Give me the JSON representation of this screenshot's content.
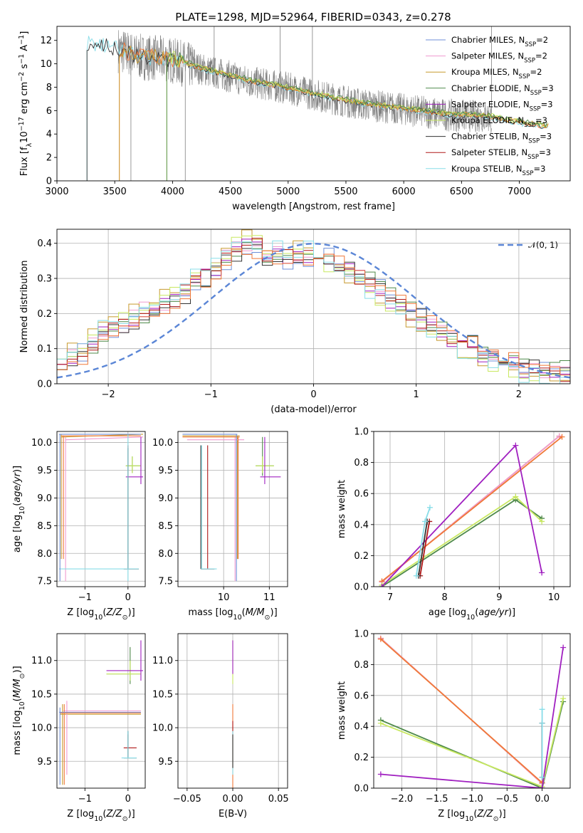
{
  "figure": {
    "title": "PLATE=1298, MJD=52964, FIBERID=0343, z=0.278"
  },
  "palette": {
    "Chabrier MILES": "#6f8fd8",
    "Salpeter MILES": "#f09ad0",
    "Kroupa MILES": "#c79a2e",
    "Chabrier ELODIE": "#4f8a4a",
    "Salpeter ELODIE": "#a020c0",
    "Kroupa ELODIE": "#c8e860",
    "Chabrier STELIB": "#333333",
    "Salpeter STELIB": "#b01818",
    "Kroupa STELIB": "#88dde8",
    "data": "#808080",
    "orange": "#f07838",
    "normal": "#5b86d6"
  },
  "chart_data": [
    {
      "id": "spectrum",
      "type": "line",
      "xlabel": "wavelength [Angstrom, rest frame]",
      "ylabel": "Flux [f_λ10^-17 erg cm^-2 s^-1 A^-1]",
      "xlim": [
        3000,
        7440
      ],
      "ylim": [
        0,
        13.2
      ],
      "xticks": [
        3000,
        3500,
        4000,
        4500,
        5000,
        5500,
        6000,
        6500,
        7000
      ],
      "yticks": [
        0,
        2,
        4,
        6,
        8,
        10,
        12
      ],
      "legend_position": "top-right",
      "legend": [
        {
          "label": "Chabrier MILES, N",
          "sub": "SSP",
          "suffix": "=2",
          "color": "#6f8fd8"
        },
        {
          "label": "Salpeter MILES, N",
          "sub": "SSP",
          "suffix": "=2",
          "color": "#f09ad0"
        },
        {
          "label": "Kroupa MILES, N",
          "sub": "SSP",
          "suffix": "=2",
          "color": "#c79a2e"
        },
        {
          "label": "Chabrier ELODIE, N",
          "sub": "SSP",
          "suffix": "=3",
          "color": "#4f8a4a"
        },
        {
          "label": "Salpeter ELODIE, N",
          "sub": "SSP",
          "suffix": "=3",
          "color": "#a020c0"
        },
        {
          "label": "Kroupa ELODIE, N",
          "sub": "SSP",
          "suffix": "=3",
          "color": "#c8e860"
        },
        {
          "label": "Chabrier STELIB, N",
          "sub": "SSP",
          "suffix": "=3",
          "color": "#333333"
        },
        {
          "label": "Salpeter STELIB, N",
          "sub": "SSP",
          "suffix": "=3",
          "color": "#b01818"
        },
        {
          "label": "Kroupa STELIB, N",
          "sub": "SSP",
          "suffix": "=3",
          "color": "#88dde8"
        }
      ],
      "model_start": {
        "ELODIE": 3950,
        "MILES": 3540,
        "STELIB": 3260
      },
      "model_end": 7250,
      "continuum": [
        [
          3260,
          11.8
        ],
        [
          3500,
          11.3
        ],
        [
          3700,
          10.6
        ],
        [
          3950,
          10.4
        ],
        [
          4100,
          10.0
        ],
        [
          4300,
          9.4
        ],
        [
          4500,
          8.9
        ],
        [
          4700,
          8.4
        ],
        [
          5000,
          7.9
        ],
        [
          5300,
          7.2
        ],
        [
          5600,
          6.6
        ],
        [
          6000,
          6.1
        ],
        [
          6400,
          5.6
        ],
        [
          6700,
          5.5
        ],
        [
          7000,
          4.9
        ],
        [
          7250,
          4.6
        ]
      ],
      "data_range": [
        3530,
        6760
      ],
      "spikes": [
        [
          4360,
          13.2
        ],
        [
          4930,
          13.2
        ],
        [
          5210,
          13.2
        ],
        [
          6760,
          13.2
        ],
        [
          3640,
          0
        ],
        [
          4110,
          0
        ]
      ]
    },
    {
      "id": "residuals",
      "type": "line",
      "xlabel": "(data-model)/error",
      "ylabel": "Normed distribution",
      "xlim": [
        -2.5,
        2.5
      ],
      "ylim": [
        0,
        0.44
      ],
      "xticks": [
        -2,
        -1,
        0,
        1,
        2
      ],
      "yticks": [
        0.0,
        0.1,
        0.2,
        0.3,
        0.4
      ],
      "legend_position": "top-right",
      "normal_label": "𝒩(0, 1)",
      "bin_width": 0.1,
      "bin_start": -2.5,
      "histogram_mean": [
        0.08,
        0.08,
        0.09,
        0.12,
        0.15,
        0.16,
        0.17,
        0.19,
        0.21,
        0.21,
        0.23,
        0.24,
        0.26,
        0.29,
        0.31,
        0.33,
        0.36,
        0.38,
        0.4,
        0.39,
        0.37,
        0.37,
        0.36,
        0.37,
        0.37,
        0.36,
        0.35,
        0.33,
        0.32,
        0.3,
        0.28,
        0.26,
        0.24,
        0.22,
        0.2,
        0.18,
        0.16,
        0.15,
        0.13,
        0.11,
        0.1,
        0.08,
        0.07,
        0.06,
        0.05,
        0.04,
        0.04,
        0.03,
        0.03,
        0.03
      ]
    },
    {
      "id": "age-vs-Z",
      "type": "scatter",
      "xlabel": "Z [log10(Z/Z⊙)]",
      "ylabel": "age [log10(age/yr)]",
      "xlim": [
        -1.65,
        0.4
      ],
      "ylim": [
        7.4,
        10.2
      ],
      "xticks": [
        -1,
        0
      ],
      "yticks": [
        7.5,
        8.0,
        8.5,
        9.0,
        9.5,
        10.0
      ]
    },
    {
      "id": "age-vs-mass",
      "type": "scatter",
      "xlabel": "mass [log10(M/M⊙)]",
      "xlim": [
        9.0,
        11.4
      ],
      "ylim": [
        7.4,
        10.2
      ],
      "xticks": [
        10,
        11
      ],
      "yticks": [
        7.5,
        8.0,
        8.5,
        9.0,
        9.5,
        10.0
      ]
    },
    {
      "id": "weight-vs-age",
      "type": "line",
      "xlabel": "age [log10(age/yr)]",
      "ylabel": "mass weight",
      "xlim": [
        6.7,
        10.3
      ],
      "ylim": [
        0,
        1.0
      ],
      "xticks": [
        7,
        8,
        9,
        10
      ],
      "yticks": [
        0.0,
        0.2,
        0.4,
        0.6,
        0.8,
        1.0
      ],
      "series": [
        {
          "color": "#c79a2e",
          "x": [
            6.85,
            10.1
          ],
          "y": [
            0.03,
            0.97
          ]
        },
        {
          "color": "#f09ad0",
          "x": [
            6.85,
            10.1
          ],
          "y": [
            0.03,
            0.97
          ]
        },
        {
          "color": "#f07838",
          "x": [
            6.85,
            10.15
          ],
          "y": [
            0.035,
            0.965
          ]
        },
        {
          "color": "#4f8a4a",
          "x": [
            6.85,
            9.3,
            9.78
          ],
          "y": [
            0.0,
            0.56,
            0.44
          ]
        },
        {
          "color": "#c8e860",
          "x": [
            6.85,
            9.3,
            9.78
          ],
          "y": [
            0.01,
            0.58,
            0.42
          ]
        },
        {
          "color": "#a020c0",
          "x": [
            6.85,
            9.3,
            9.78
          ],
          "y": [
            0.0,
            0.91,
            0.09
          ]
        },
        {
          "color": "#b01818",
          "x": [
            7.55,
            7.72
          ],
          "y": [
            0.07,
            0.42
          ]
        },
        {
          "color": "#333333",
          "x": [
            7.52,
            7.68
          ],
          "y": [
            0.07,
            0.42
          ]
        },
        {
          "color": "#88dde8",
          "x": [
            7.48,
            7.64,
            7.73
          ],
          "y": [
            0.07,
            0.42,
            0.51
          ]
        }
      ]
    },
    {
      "id": "mass-vs-Z",
      "type": "scatter",
      "xlabel": "Z [log10(Z/Z⊙)]",
      "ylabel": "mass [log10(M/M⊙)]",
      "xlim": [
        -1.65,
        0.4
      ],
      "ylim": [
        9.1,
        11.4
      ],
      "xticks": [
        -1,
        0
      ],
      "yticks": [
        9.5,
        10.0,
        10.5,
        11.0
      ]
    },
    {
      "id": "mass-vs-EBV",
      "type": "scatter",
      "xlabel": "E(B-V)",
      "xlim": [
        -0.06,
        0.06
      ],
      "ylim": [
        9.1,
        11.4
      ],
      "xticks": [
        -0.05,
        0.0,
        0.05
      ],
      "yticks": [
        9.5,
        10.0,
        10.5,
        11.0
      ]
    },
    {
      "id": "weight-vs-Z",
      "type": "line",
      "xlabel": "Z [log10(Z/Z⊙)]",
      "ylabel": "mass weight",
      "xlim": [
        -2.4,
        0.4
      ],
      "ylim": [
        0,
        1.0
      ],
      "xticks": [
        -2.0,
        -1.5,
        -1.0,
        -0.5,
        0.0
      ],
      "yticks": [
        0.0,
        0.2,
        0.4,
        0.6,
        0.8,
        1.0
      ],
      "series": [
        {
          "color": "#c79a2e",
          "x": [
            -2.3,
            0.0
          ],
          "y": [
            0.97,
            0.03
          ]
        },
        {
          "color": "#f09ad0",
          "x": [
            -2.3,
            0.0
          ],
          "y": [
            0.97,
            0.03
          ]
        },
        {
          "color": "#f07838",
          "x": [
            -2.3,
            0.0
          ],
          "y": [
            0.965,
            0.035
          ]
        },
        {
          "color": "#4f8a4a",
          "x": [
            -2.3,
            0.0,
            0.3
          ],
          "y": [
            0.44,
            0.0,
            0.56
          ]
        },
        {
          "color": "#c8e860",
          "x": [
            -2.3,
            0.0,
            0.3
          ],
          "y": [
            0.42,
            0.01,
            0.58
          ]
        },
        {
          "color": "#a020c0",
          "x": [
            -2.3,
            0.0,
            0.3
          ],
          "y": [
            0.09,
            0.0,
            0.91
          ]
        },
        {
          "color": "#b01818",
          "x": [
            0.0,
            0.0
          ],
          "y": [
            0.07,
            0.42
          ]
        },
        {
          "color": "#333333",
          "x": [
            0.0,
            0.0
          ],
          "y": [
            0.07,
            0.42
          ]
        },
        {
          "color": "#88dde8",
          "x": [
            0.0,
            0.0,
            0.0
          ],
          "y": [
            0.07,
            0.42,
            0.51
          ]
        }
      ]
    }
  ],
  "error_bars": {
    "age-vs-Z": [
      {
        "color": "#c79a2e",
        "x": [
          -1.55,
          0.35
        ],
        "y": [
          10.1,
          10.15
        ],
        "xc": -1.55,
        "yr": [
          7.9,
          10.15
        ]
      },
      {
        "color": "#f09ad0",
        "x": [
          -1.45,
          0.35
        ],
        "y": [
          10.05,
          10.1
        ],
        "xc": -1.45,
        "yr": [
          7.5,
          10.1
        ]
      },
      {
        "color": "#f07838",
        "x": [
          -1.55,
          0.3
        ],
        "y": [
          10.12,
          10.12
        ],
        "xc": -1.5,
        "yr": [
          7.9,
          10.12
        ]
      },
      {
        "color": "#4f8a4a",
        "x": [
          -0.05,
          0.3
        ],
        "y": [
          9.58,
          9.58
        ],
        "xc": 0.1,
        "yr": [
          9.45,
          9.75
        ]
      },
      {
        "color": "#c8e860",
        "x": [
          -0.05,
          0.3
        ],
        "y": [
          9.58,
          9.58
        ],
        "xc": 0.1,
        "yr": [
          9.45,
          9.75
        ]
      },
      {
        "color": "#a020c0",
        "x": [
          -0.05,
          0.35
        ],
        "y": [
          9.38,
          9.38
        ],
        "xc": 0.3,
        "yr": [
          9.25,
          10.1
        ]
      },
      {
        "color": "#b01818",
        "x": [
          -0.1,
          0.25
        ],
        "y": [
          7.72,
          7.72
        ],
        "xc": 0.0,
        "yr": [
          7.72,
          9.95
        ]
      },
      {
        "color": "#333333",
        "x": [
          -0.1,
          0.25
        ],
        "y": [
          7.72,
          7.72
        ],
        "xc": 0.0,
        "yr": [
          7.72,
          9.9
        ]
      },
      {
        "color": "#88dde8",
        "x": [
          -1.6,
          0.25
        ],
        "y": [
          7.72,
          7.72
        ],
        "xc": 0.0,
        "yr": [
          7.5,
          10.15
        ]
      },
      {
        "color": "#6f8fd8",
        "x": [
          -1.6,
          0.3
        ],
        "y": [
          10.15,
          10.15
        ],
        "xc": -1.58,
        "yr": [
          7.5,
          10.15
        ]
      }
    ],
    "age-vs-mass": [
      {
        "color": "#c79a2e",
        "x": [
          9.1,
          10.35
        ],
        "y": [
          10.12,
          10.12
        ],
        "xc": 10.3,
        "yr": [
          7.9,
          10.12
        ]
      },
      {
        "color": "#f09ad0",
        "x": [
          9.2,
          10.45
        ],
        "y": [
          10.05,
          10.05
        ],
        "xc": 10.25,
        "yr": [
          7.5,
          10.1
        ]
      },
      {
        "color": "#f07838",
        "x": [
          9.1,
          10.35
        ],
        "y": [
          10.1,
          10.1
        ],
        "xc": 10.32,
        "yr": [
          7.9,
          10.1
        ]
      },
      {
        "color": "#4f8a4a",
        "x": [
          10.7,
          11.1
        ],
        "y": [
          9.58,
          9.58
        ],
        "xc": 10.85,
        "yr": [
          9.4,
          10.1
        ]
      },
      {
        "color": "#c8e860",
        "x": [
          10.7,
          11.1
        ],
        "y": [
          9.58,
          9.58
        ],
        "xc": 10.85,
        "yr": [
          9.45,
          9.75
        ]
      },
      {
        "color": "#a020c0",
        "x": [
          10.8,
          11.25
        ],
        "y": [
          9.38,
          9.38
        ],
        "xc": 10.9,
        "yr": [
          9.25,
          10.1
        ]
      },
      {
        "color": "#b01818",
        "x": [
          9.5,
          9.8
        ],
        "y": [
          7.72,
          7.72
        ],
        "xc": 9.65,
        "yr": [
          7.72,
          9.95
        ]
      },
      {
        "color": "#333333",
        "x": [
          9.5,
          9.8
        ],
        "y": [
          7.72,
          7.72
        ],
        "xc": 9.5,
        "yr": [
          7.72,
          9.95
        ]
      },
      {
        "color": "#88dde8",
        "x": [
          9.5,
          9.85
        ],
        "y": [
          7.72,
          7.72
        ],
        "xc": 9.52,
        "yr": [
          7.72,
          9.95
        ]
      },
      {
        "color": "#6f8fd8",
        "x": [
          9.1,
          10.3
        ],
        "y": [
          10.15,
          10.15
        ],
        "xc": 10.28,
        "yr": [
          7.5,
          10.15
        ]
      }
    ],
    "mass-vs-Z": [
      {
        "color": "#c79a2e",
        "x": [
          -1.58,
          0.3
        ],
        "y": [
          10.2,
          10.2
        ],
        "xc": -1.52,
        "yr": [
          9.15,
          10.35
        ]
      },
      {
        "color": "#f09ad0",
        "x": [
          -1.5,
          0.3
        ],
        "y": [
          10.25,
          10.25
        ],
        "xc": -1.42,
        "yr": [
          9.3,
          10.4
        ]
      },
      {
        "color": "#f07838",
        "x": [
          -1.58,
          0.3
        ],
        "y": [
          10.22,
          10.22
        ],
        "xc": -1.48,
        "yr": [
          9.15,
          10.35
        ]
      },
      {
        "color": "#4f8a4a",
        "x": [
          -0.5,
          0.3
        ],
        "y": [
          10.8,
          10.8
        ],
        "xc": 0.05,
        "yr": [
          10.65,
          11.2
        ]
      },
      {
        "color": "#c8e860",
        "x": [
          -0.5,
          0.3
        ],
        "y": [
          10.8,
          10.8
        ],
        "xc": 0.05,
        "yr": [
          10.7,
          11.0
        ]
      },
      {
        "color": "#a020c0",
        "x": [
          -0.5,
          0.35
        ],
        "y": [
          10.85,
          10.85
        ],
        "xc": 0.3,
        "yr": [
          10.7,
          11.3
        ]
      },
      {
        "color": "#b01818",
        "x": [
          -0.1,
          0.2
        ],
        "y": [
          9.7,
          9.7
        ],
        "xc": 0.0,
        "yr": [
          9.55,
          9.9
        ]
      },
      {
        "color": "#333333",
        "x": [
          -0.1,
          0.2
        ],
        "y": [
          9.55,
          9.55
        ],
        "xc": 0.0,
        "yr": [
          9.55,
          9.95
        ]
      },
      {
        "color": "#88dde8",
        "x": [
          -0.15,
          0.2
        ],
        "y": [
          9.55,
          9.55
        ],
        "xc": 0.0,
        "yr": [
          9.55,
          9.95
        ]
      },
      {
        "color": "#6f8fd8",
        "x": [
          -1.6,
          0.3
        ],
        "y": [
          10.23,
          10.23
        ],
        "xc": -1.58,
        "yr": [
          9.15,
          10.3
        ]
      }
    ],
    "mass-vs-EBV": [
      {
        "color": "#c8e860",
        "x": [
          0.0,
          0.0
        ],
        "y": [
          10.8,
          10.8
        ],
        "xc": 0.0,
        "yr": [
          10.65,
          11.3
        ]
      },
      {
        "color": "#a020c0",
        "x": [
          0.0,
          0.0
        ],
        "y": [
          11.0,
          11.0
        ],
        "xc": 0.0,
        "yr": [
          10.8,
          11.3
        ]
      },
      {
        "color": "#f07838",
        "x": [
          0.0,
          0.0
        ],
        "y": [
          10.2,
          10.2
        ],
        "xc": 0.0,
        "yr": [
          9.1,
          10.35
        ]
      },
      {
        "color": "#b01818",
        "x": [
          0.0,
          0.0
        ],
        "y": [
          10.0,
          10.0
        ],
        "xc": 0.0,
        "yr": [
          9.9,
          10.1
        ]
      },
      {
        "color": "#88dde8",
        "x": [
          0.0,
          0.0
        ],
        "y": [
          9.55,
          9.55
        ],
        "xc": 0.0,
        "yr": [
          9.3,
          9.95
        ]
      },
      {
        "color": "#333333",
        "x": [
          0.0,
          0.0
        ],
        "y": [
          9.6,
          9.6
        ],
        "xc": 0.0,
        "yr": [
          9.4,
          9.9
        ]
      }
    ]
  }
}
